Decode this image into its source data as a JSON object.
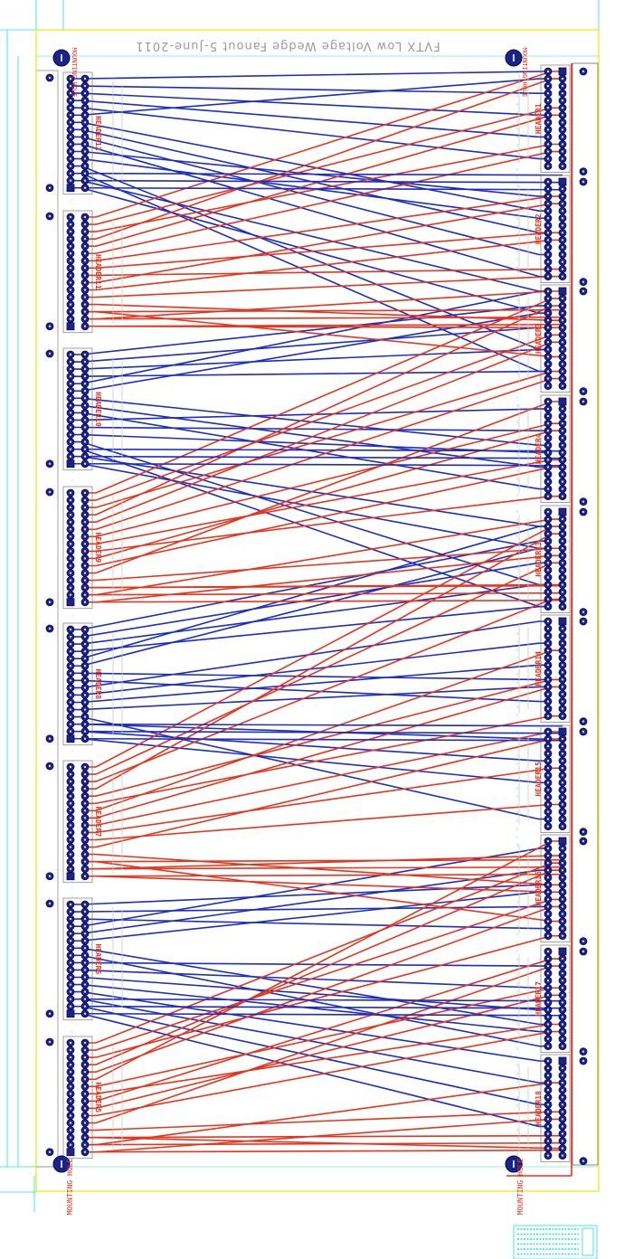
{
  "board": {
    "title": "FVTX Low Voltage Wedge Fanout 5-June-2011",
    "mounting_label": "MOUNTING HOLE",
    "colors": {
      "background": "#ffffff",
      "outline": "#e8e800",
      "dimension": "#22e0e0",
      "top_trace": "#e8341c",
      "bottom_trace": "#1b2dc4",
      "pad": "#1a2488",
      "pad_ring": "#0a0a50",
      "silk": "#c8c8c8",
      "refdes": "#e8341c"
    }
  },
  "left_connector_labels": [
    "HEADER12",
    "HEADER11",
    "HEADER10",
    "HEADER9",
    "HEADER8",
    "HEADER7",
    "HEADER6",
    "HEADER5"
  ],
  "right_connector_labels": [
    "HEADER1",
    "HEADER2",
    "HEADER3",
    "HEADER4",
    "HEADER13",
    "HEADER14",
    "HEADER15",
    "HEADER16",
    "HEADER17",
    "HEADER18"
  ],
  "title_block": {
    "lines": [
      "",
      "",
      "",
      "",
      "",
      ""
    ]
  }
}
